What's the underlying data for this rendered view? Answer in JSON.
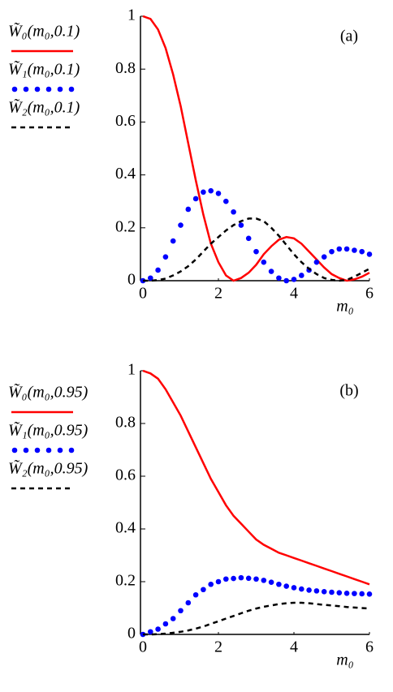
{
  "chart_data": [
    {
      "type": "line",
      "annotation": "(a)",
      "xlabel": "m₀",
      "x": [
        0,
        0.2,
        0.4,
        0.6,
        0.8,
        1.0,
        1.2,
        1.4,
        1.6,
        1.8,
        2.0,
        2.2,
        2.4,
        2.6,
        2.8,
        3.0,
        3.2,
        3.4,
        3.6,
        3.8,
        4.0,
        4.2,
        4.4,
        4.6,
        4.8,
        5.0,
        5.2,
        5.4,
        5.6,
        5.8,
        6.0
      ],
      "series": [
        {
          "name": "W̃₀(m₀,0.1)",
          "color": "#ff0000",
          "style": "solid",
          "values": [
            1.0,
            0.99,
            0.95,
            0.88,
            0.78,
            0.66,
            0.52,
            0.38,
            0.25,
            0.14,
            0.07,
            0.02,
            0.0,
            0.01,
            0.03,
            0.06,
            0.1,
            0.13,
            0.155,
            0.165,
            0.16,
            0.14,
            0.11,
            0.08,
            0.05,
            0.025,
            0.01,
            0.0,
            0.005,
            0.015,
            0.03
          ]
        },
        {
          "name": "W̃₁(m₀,0.1)",
          "color": "#0000ff",
          "style": "dots",
          "values": [
            0,
            0.01,
            0.04,
            0.09,
            0.15,
            0.21,
            0.27,
            0.31,
            0.335,
            0.34,
            0.33,
            0.3,
            0.26,
            0.21,
            0.16,
            0.11,
            0.07,
            0.035,
            0.01,
            0.0,
            0.005,
            0.02,
            0.04,
            0.07,
            0.09,
            0.11,
            0.12,
            0.12,
            0.115,
            0.11,
            0.1
          ]
        },
        {
          "name": "W̃₂(m₀,0.1)",
          "color": "#000000",
          "style": "dashed",
          "values": [
            0,
            0,
            0.002,
            0.008,
            0.02,
            0.035,
            0.055,
            0.08,
            0.11,
            0.14,
            0.165,
            0.19,
            0.21,
            0.225,
            0.235,
            0.235,
            0.225,
            0.2,
            0.17,
            0.135,
            0.1,
            0.07,
            0.045,
            0.025,
            0.01,
            0.003,
            0.0,
            0.003,
            0.015,
            0.03,
            0.045
          ]
        }
      ],
      "xlim": [
        0,
        6
      ],
      "xticks": [
        0,
        2,
        4,
        6
      ],
      "ylim": [
        0,
        1
      ],
      "yticks": [
        0,
        0.2,
        0.4,
        0.6,
        0.8,
        1
      ]
    },
    {
      "type": "line",
      "annotation": "(b)",
      "xlabel": "m₀",
      "x": [
        0,
        0.2,
        0.4,
        0.6,
        0.8,
        1.0,
        1.2,
        1.4,
        1.6,
        1.8,
        2.0,
        2.2,
        2.4,
        2.6,
        2.8,
        3.0,
        3.2,
        3.4,
        3.6,
        3.8,
        4.0,
        4.2,
        4.4,
        4.6,
        4.8,
        5.0,
        5.2,
        5.4,
        5.6,
        5.8,
        6.0
      ],
      "series": [
        {
          "name": "W̃₀(m₀,0.95)",
          "color": "#ff0000",
          "style": "solid",
          "values": [
            1.0,
            0.99,
            0.97,
            0.93,
            0.88,
            0.83,
            0.77,
            0.71,
            0.65,
            0.59,
            0.54,
            0.49,
            0.45,
            0.42,
            0.39,
            0.36,
            0.34,
            0.325,
            0.31,
            0.3,
            0.29,
            0.28,
            0.27,
            0.26,
            0.25,
            0.24,
            0.23,
            0.22,
            0.21,
            0.2,
            0.19
          ]
        },
        {
          "name": "W̃₁(m₀,0.95)",
          "color": "#0000ff",
          "style": "dots",
          "values": [
            0,
            0.01,
            0.02,
            0.04,
            0.06,
            0.09,
            0.12,
            0.15,
            0.17,
            0.19,
            0.2,
            0.21,
            0.212,
            0.215,
            0.213,
            0.21,
            0.205,
            0.198,
            0.19,
            0.183,
            0.177,
            0.172,
            0.168,
            0.165,
            0.162,
            0.16,
            0.158,
            0.156,
            0.155,
            0.154,
            0.153
          ]
        },
        {
          "name": "W̃₂(m₀,0.95)",
          "color": "#000000",
          "style": "dashed",
          "values": [
            0,
            0,
            0.001,
            0.003,
            0.006,
            0.01,
            0.015,
            0.022,
            0.03,
            0.04,
            0.05,
            0.06,
            0.07,
            0.08,
            0.09,
            0.098,
            0.105,
            0.11,
            0.115,
            0.118,
            0.12,
            0.12,
            0.118,
            0.115,
            0.112,
            0.11,
            0.107,
            0.104,
            0.102,
            0.1,
            0.098
          ]
        }
      ],
      "xlim": [
        0,
        6
      ],
      "xticks": [
        0,
        2,
        4,
        6
      ],
      "ylim": [
        0,
        1
      ],
      "yticks": [
        0,
        0.2,
        0.4,
        0.6,
        0.8,
        1
      ]
    }
  ]
}
